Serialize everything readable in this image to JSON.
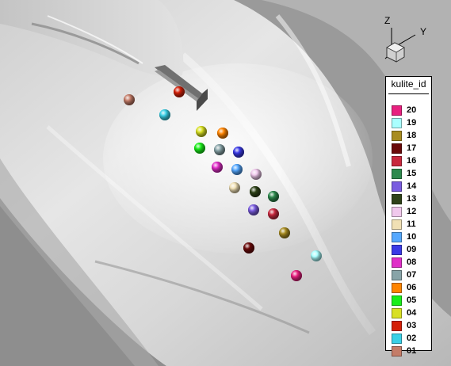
{
  "axes_triad": {
    "z_label": "Z",
    "y_label": "Y"
  },
  "legend": {
    "title": "kulite_id",
    "entries": [
      {
        "label": "20",
        "color": "#e8207f"
      },
      {
        "label": "19",
        "color": "#aaffff"
      },
      {
        "label": "18",
        "color": "#a88c20"
      },
      {
        "label": "17",
        "color": "#6a0a0a"
      },
      {
        "label": "16",
        "color": "#c8283e"
      },
      {
        "label": "15",
        "color": "#2e8a4e"
      },
      {
        "label": "14",
        "color": "#7a5ce0"
      },
      {
        "label": "13",
        "color": "#2e4218"
      },
      {
        "label": "12",
        "color": "#f0c8ec"
      },
      {
        "label": "11",
        "color": "#f0e0b4"
      },
      {
        "label": "10",
        "color": "#55a8ff"
      },
      {
        "label": "09",
        "color": "#3a3ae6"
      },
      {
        "label": "08",
        "color": "#e02ec8"
      },
      {
        "label": "07",
        "color": "#88a4a8"
      },
      {
        "label": "06",
        "color": "#ff8400"
      },
      {
        "label": "05",
        "color": "#19ee19"
      },
      {
        "label": "04",
        "color": "#d8e024"
      },
      {
        "label": "03",
        "color": "#d42008"
      },
      {
        "label": "02",
        "color": "#3ad0e6"
      },
      {
        "label": "01",
        "color": "#c47c68"
      }
    ]
  }
}
